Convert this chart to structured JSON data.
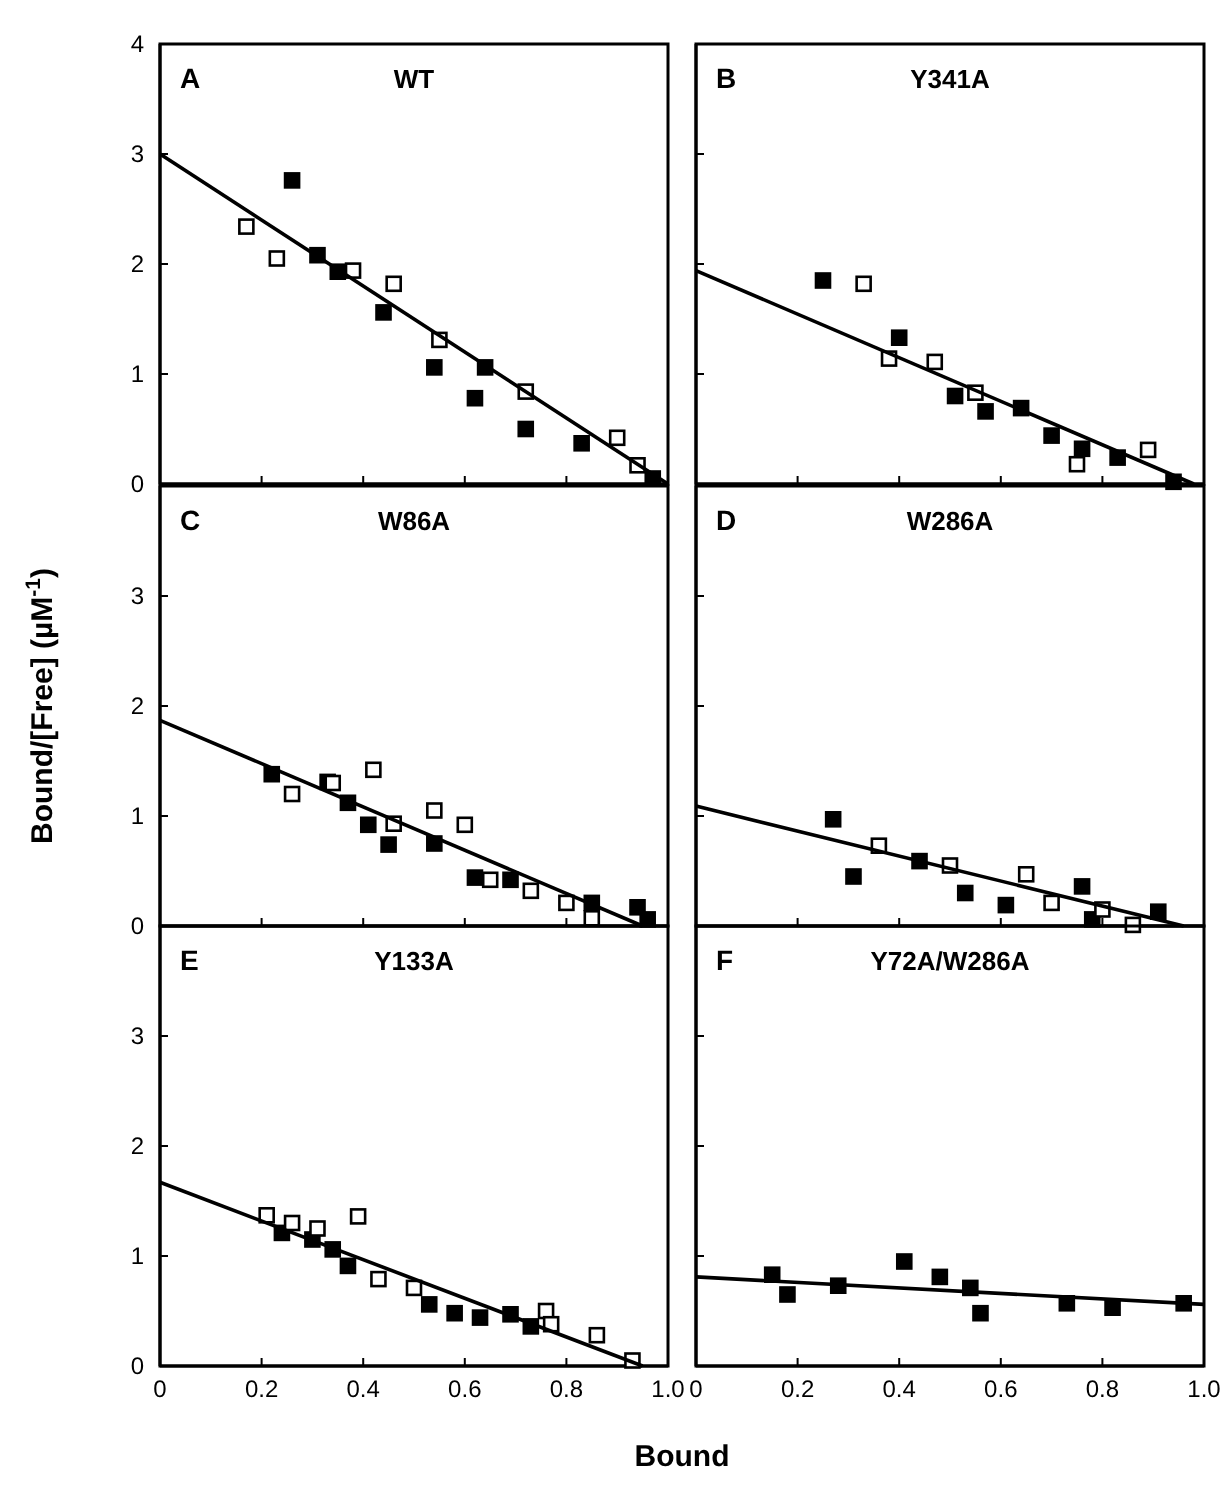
{
  "chart_data": [
    {
      "type": "scatter",
      "title": "WT",
      "annotations": [
        "A"
      ],
      "xlim": [
        0,
        1
      ],
      "ylim": [
        0,
        4
      ],
      "xticks": [
        0,
        0.2,
        0.4,
        0.6,
        0.8
      ],
      "yticks": [
        0,
        1,
        2,
        3,
        4
      ],
      "tick_labels": "y",
      "marker": "square",
      "grid": false,
      "series": [
        {
          "color": "#000000",
          "x": [
            0.26,
            0.31,
            0.35,
            0.44,
            0.54,
            0.64,
            0.62,
            0.72,
            0.83,
            0.97
          ],
          "values": [
            2.76,
            2.08,
            1.93,
            1.56,
            1.06,
            1.06,
            0.78,
            0.5,
            0.37,
            0.05
          ]
        },
        {
          "color": "#ffffff",
          "x": [
            0.17,
            0.23,
            0.38,
            0.46,
            0.55,
            0.72,
            0.9,
            0.94
          ],
          "values": [
            2.34,
            2.05,
            1.94,
            1.82,
            1.31,
            0.84,
            0.42,
            0.17
          ]
        },
        {
          "type": "line",
          "marker": "none",
          "color": "#000000",
          "x": [
            0,
            1
          ],
          "values": [
            3,
            0
          ]
        }
      ]
    },
    {
      "type": "scatter",
      "title": "Y341A",
      "annotations": [
        "B"
      ],
      "xlim": [
        0,
        1
      ],
      "ylim": [
        0,
        4
      ],
      "xticks": [
        0,
        0.2,
        0.4,
        0.6,
        0.8
      ],
      "yticks": [
        0,
        1,
        2,
        3
      ],
      "tick_labels": false,
      "marker": "square",
      "grid": false,
      "series": [
        {
          "color": "#000000",
          "x": [
            0.25,
            0.4,
            0.51,
            0.57,
            0.64,
            0.7,
            0.76,
            0.83,
            0.94
          ],
          "values": [
            1.85,
            1.33,
            0.8,
            0.66,
            0.69,
            0.44,
            0.32,
            0.24,
            0.02
          ]
        },
        {
          "color": "#ffffff",
          "x": [
            0.33,
            0.38,
            0.47,
            0.55,
            0.75,
            0.89
          ],
          "values": [
            1.82,
            1.14,
            1.11,
            0.83,
            0.18,
            0.31
          ]
        },
        {
          "type": "line",
          "marker": "none",
          "color": "#000000",
          "x": [
            0,
            0.98
          ],
          "values": [
            1.94,
            0
          ]
        }
      ]
    },
    {
      "type": "scatter",
      "title": "W86A",
      "annotations": [
        "C"
      ],
      "xlim": [
        0,
        1
      ],
      "ylim": [
        0,
        4
      ],
      "xticks": [
        0,
        0.2,
        0.4,
        0.6,
        0.8
      ],
      "yticks": [
        0,
        1,
        2,
        3
      ],
      "tick_labels": "y",
      "marker": "square",
      "grid": false,
      "ylabel": "Bound/[Free]   (µM$^{-1}$)",
      "series": [
        {
          "color": "#000000",
          "x": [
            0.22,
            0.33,
            0.37,
            0.41,
            0.45,
            0.54,
            0.62,
            0.69,
            0.85,
            0.94,
            0.96
          ],
          "values": [
            1.38,
            1.31,
            1.12,
            0.92,
            0.74,
            0.75,
            0.44,
            0.42,
            0.21,
            0.17,
            0.06
          ]
        },
        {
          "color": "#ffffff",
          "x": [
            0.26,
            0.34,
            0.42,
            0.46,
            0.54,
            0.6,
            0.65,
            0.73,
            0.8,
            0.85
          ],
          "values": [
            1.2,
            1.3,
            1.42,
            0.93,
            1.05,
            0.92,
            0.42,
            0.32,
            0.21,
            0.07
          ]
        },
        {
          "type": "line",
          "marker": "none",
          "color": "#000000",
          "x": [
            0,
            0.95
          ],
          "values": [
            1.87,
            0
          ]
        }
      ]
    },
    {
      "type": "scatter",
      "title": "W286A",
      "annotations": [
        "D"
      ],
      "xlim": [
        0,
        1
      ],
      "ylim": [
        0,
        4
      ],
      "xticks": [
        0,
        0.2,
        0.4,
        0.6,
        0.8
      ],
      "yticks": [
        0,
        1,
        2,
        3
      ],
      "tick_labels": false,
      "marker": "square",
      "grid": false,
      "series": [
        {
          "color": "#000000",
          "x": [
            0.27,
            0.31,
            0.44,
            0.53,
            0.61,
            0.76,
            0.78,
            0.91
          ],
          "values": [
            0.97,
            0.45,
            0.59,
            0.3,
            0.19,
            0.36,
            0.06,
            0.13
          ]
        },
        {
          "color": "#ffffff",
          "x": [
            0.36,
            0.5,
            0.65,
            0.7,
            0.8,
            0.86
          ],
          "values": [
            0.73,
            0.55,
            0.47,
            0.21,
            0.15,
            0.01
          ]
        },
        {
          "type": "line",
          "marker": "none",
          "color": "#000000",
          "x": [
            0,
            0.96
          ],
          "values": [
            1.09,
            0
          ]
        }
      ]
    },
    {
      "type": "scatter",
      "title": "Y133A",
      "annotations": [
        "E"
      ],
      "xlim": [
        0,
        1
      ],
      "ylim": [
        0,
        4
      ],
      "xticks": [
        0,
        0.2,
        0.4,
        0.6,
        0.8,
        {
          "value": 1,
          "label": "1.0"
        }
      ],
      "yticks": [
        0,
        1,
        2,
        3
      ],
      "marker": "square",
      "grid": false,
      "xlabel": "Bound",
      "series": [
        {
          "color": "#000000",
          "x": [
            0.24,
            0.3,
            0.34,
            0.37,
            0.53,
            0.58,
            0.63,
            0.69,
            0.73
          ],
          "values": [
            1.21,
            1.15,
            1.06,
            0.91,
            0.56,
            0.48,
            0.44,
            0.47,
            0.36
          ]
        },
        {
          "color": "#ffffff",
          "x": [
            0.21,
            0.26,
            0.31,
            0.39,
            0.43,
            0.5,
            0.76,
            0.77,
            0.86,
            0.93
          ],
          "values": [
            1.37,
            1.3,
            1.25,
            1.36,
            0.79,
            0.71,
            0.5,
            0.38,
            0.28,
            0.05
          ]
        },
        {
          "type": "line",
          "marker": "none",
          "color": "#000000",
          "x": [
            0,
            0.95
          ],
          "values": [
            1.67,
            0
          ]
        }
      ]
    },
    {
      "type": "scatter",
      "title": "Y72A/W286A",
      "annotations": [
        "F"
      ],
      "xlim": [
        0,
        1
      ],
      "ylim": [
        0,
        4
      ],
      "xticks": [
        0,
        0.2,
        0.4,
        0.6,
        0.8,
        {
          "value": 1,
          "label": "1.0"
        }
      ],
      "yticks": [
        0,
        1,
        2,
        3
      ],
      "tick_labels": "x",
      "marker": "square",
      "grid": false,
      "series": [
        {
          "color": "#000000",
          "x": [
            0.15,
            0.18,
            0.28,
            0.41,
            0.48,
            0.54,
            0.56,
            0.73,
            0.82,
            0.96
          ],
          "values": [
            0.83,
            0.65,
            0.73,
            0.95,
            0.81,
            0.71,
            0.48,
            0.57,
            0.53,
            0.57
          ]
        },
        {
          "type": "line",
          "marker": "none",
          "color": "#000000",
          "x": [
            0,
            1
          ],
          "values": [
            0.81,
            0.56
          ]
        }
      ]
    }
  ]
}
